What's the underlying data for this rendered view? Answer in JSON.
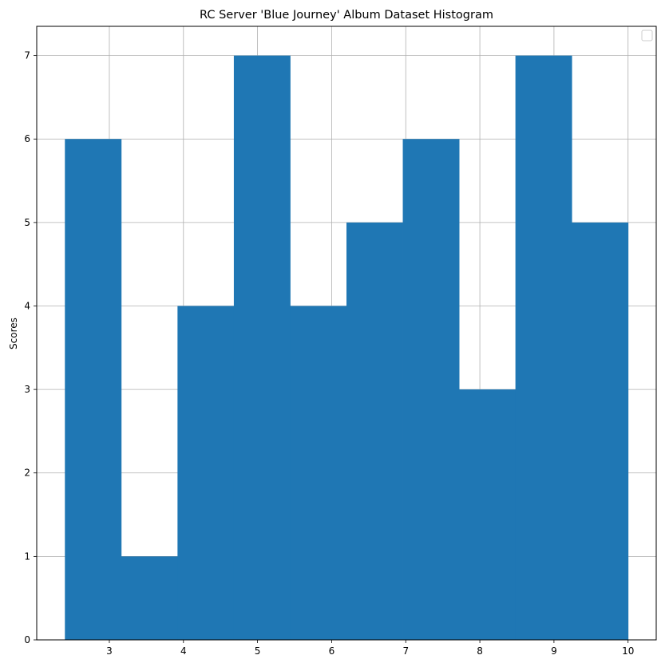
{
  "chart_data": {
    "type": "bar",
    "title": "RC Server 'Blue Journey' Album Dataset Histogram",
    "xlabel": "",
    "ylabel": "Scores",
    "bin_edges": [
      2.4,
      3.16,
      3.92,
      4.68,
      5.44,
      6.2,
      6.96,
      7.72,
      8.48,
      9.24,
      10.0
    ],
    "values": [
      6,
      1,
      4,
      7,
      4,
      5,
      6,
      3,
      7,
      5
    ],
    "xlim": [
      2.02,
      10.38
    ],
    "ylim": [
      0,
      7.35
    ],
    "x_ticks": [
      3,
      4,
      5,
      6,
      7,
      8,
      9,
      10
    ],
    "y_ticks": [
      0,
      1,
      2,
      3,
      4,
      5,
      6,
      7
    ],
    "grid": true,
    "legend": {
      "placement": "top-right",
      "entries": []
    },
    "colors": {
      "bar": "#1f77b4",
      "grid": "#b0b0b0",
      "axes": "#000000"
    }
  }
}
